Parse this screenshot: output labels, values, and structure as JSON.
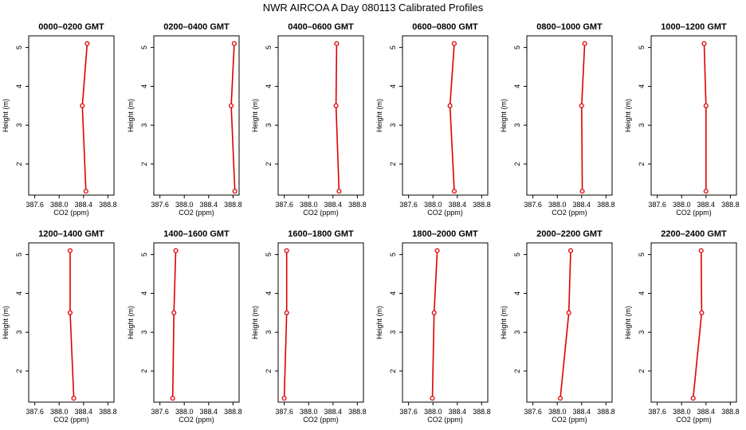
{
  "title": "NWR AIRCOA A  Day 080113  Calibrated Profiles",
  "colors": {
    "line": "#dd0000",
    "axis": "#000000",
    "background": "#ffffff"
  },
  "chart_data": [
    {
      "type": "line",
      "title": "0000–0200 GMT",
      "xlabel": "CO2 (ppm)",
      "ylabel": "Height (m)",
      "xlim": [
        387.5,
        388.9
      ],
      "ylim": [
        1.2,
        5.3
      ],
      "xticks": [
        387.6,
        388.0,
        388.4,
        388.8
      ],
      "xtick_labels": [
        "387.6",
        "388.0",
        "388.4",
        "388.8"
      ],
      "yticks": [
        2,
        3,
        4,
        5
      ],
      "ytick_labels": [
        "2",
        "3",
        "4",
        "5"
      ],
      "x": [
        388.46,
        388.38,
        388.44
      ],
      "y": [
        5.1,
        3.5,
        1.3
      ]
    },
    {
      "type": "line",
      "title": "0200–0400 GMT",
      "xlabel": "CO2 (ppm)",
      "ylabel": "Height (m)",
      "xlim": [
        387.5,
        388.9
      ],
      "ylim": [
        1.2,
        5.3
      ],
      "xticks": [
        387.6,
        388.0,
        388.4,
        388.8
      ],
      "xtick_labels": [
        "387.6",
        "388.0",
        "388.4",
        "388.8"
      ],
      "yticks": [
        2,
        3,
        4,
        5
      ],
      "ytick_labels": [
        "2",
        "3",
        "4",
        "5"
      ],
      "x": [
        388.82,
        388.77,
        388.83
      ],
      "y": [
        5.1,
        3.5,
        1.3
      ]
    },
    {
      "type": "line",
      "title": "0400–0600 GMT",
      "xlabel": "CO2 (ppm)",
      "ylabel": "Height (m)",
      "xlim": [
        387.5,
        388.9
      ],
      "ylim": [
        1.2,
        5.3
      ],
      "xticks": [
        387.6,
        388.0,
        388.4,
        388.8
      ],
      "xtick_labels": [
        "387.6",
        "388.0",
        "388.4",
        "388.8"
      ],
      "yticks": [
        2,
        3,
        4,
        5
      ],
      "ytick_labels": [
        "2",
        "3",
        "4",
        "5"
      ],
      "x": [
        388.46,
        388.45,
        388.5
      ],
      "y": [
        5.1,
        3.5,
        1.3
      ]
    },
    {
      "type": "line",
      "title": "0600–0800 GMT",
      "xlabel": "CO2 (ppm)",
      "ylabel": "Height (m)",
      "xlim": [
        387.5,
        388.9
      ],
      "ylim": [
        1.2,
        5.3
      ],
      "xticks": [
        387.6,
        388.0,
        388.4,
        388.8
      ],
      "xtick_labels": [
        "387.6",
        "388.0",
        "388.4",
        "388.8"
      ],
      "yticks": [
        2,
        3,
        4,
        5
      ],
      "ytick_labels": [
        "2",
        "3",
        "4",
        "5"
      ],
      "x": [
        388.35,
        388.28,
        388.35
      ],
      "y": [
        5.1,
        3.5,
        1.3
      ]
    },
    {
      "type": "line",
      "title": "0800–1000 GMT",
      "xlabel": "CO2 (ppm)",
      "ylabel": "Height (m)",
      "xlim": [
        387.5,
        388.9
      ],
      "ylim": [
        1.2,
        5.3
      ],
      "xticks": [
        387.6,
        388.0,
        388.4,
        388.8
      ],
      "xtick_labels": [
        "387.6",
        "388.0",
        "388.4",
        "388.8"
      ],
      "yticks": [
        2,
        3,
        4,
        5
      ],
      "ytick_labels": [
        "2",
        "3",
        "4",
        "5"
      ],
      "x": [
        388.45,
        388.4,
        388.41
      ],
      "y": [
        5.1,
        3.5,
        1.3
      ]
    },
    {
      "type": "line",
      "title": "1000–1200 GMT",
      "xlabel": "CO2 (ppm)",
      "ylabel": "Height (m)",
      "xlim": [
        387.5,
        388.9
      ],
      "ylim": [
        1.2,
        5.3
      ],
      "xticks": [
        387.6,
        388.0,
        388.4,
        388.8
      ],
      "xtick_labels": [
        "387.6",
        "388.0",
        "388.4",
        "388.8"
      ],
      "yticks": [
        2,
        3,
        4,
        5
      ],
      "ytick_labels": [
        "2",
        "3",
        "4",
        "5"
      ],
      "x": [
        388.37,
        388.4,
        388.4
      ],
      "y": [
        5.1,
        3.5,
        1.3
      ]
    },
    {
      "type": "line",
      "title": "1200–1400 GMT",
      "xlabel": "CO2 (ppm)",
      "ylabel": "Height (m)",
      "xlim": [
        387.5,
        388.9
      ],
      "ylim": [
        1.2,
        5.3
      ],
      "xticks": [
        387.6,
        388.0,
        388.4,
        388.8
      ],
      "xtick_labels": [
        "387.6",
        "388.0",
        "388.4",
        "388.8"
      ],
      "yticks": [
        2,
        3,
        4,
        5
      ],
      "ytick_labels": [
        "2",
        "3",
        "4",
        "5"
      ],
      "x": [
        388.18,
        388.18,
        388.24
      ],
      "y": [
        5.1,
        3.5,
        1.3
      ]
    },
    {
      "type": "line",
      "title": "1400–1600 GMT",
      "xlabel": "CO2 (ppm)",
      "ylabel": "Height (m)",
      "xlim": [
        387.5,
        388.9
      ],
      "ylim": [
        1.2,
        5.3
      ],
      "xticks": [
        387.6,
        388.0,
        388.4,
        388.8
      ],
      "xtick_labels": [
        "387.6",
        "388.0",
        "388.4",
        "388.8"
      ],
      "yticks": [
        2,
        3,
        4,
        5
      ],
      "ytick_labels": [
        "2",
        "3",
        "4",
        "5"
      ],
      "x": [
        387.86,
        387.83,
        387.81
      ],
      "y": [
        5.1,
        3.5,
        1.3
      ]
    },
    {
      "type": "line",
      "title": "1600–1800 GMT",
      "xlabel": "CO2 (ppm)",
      "ylabel": "Height (m)",
      "xlim": [
        387.5,
        388.9
      ],
      "ylim": [
        1.2,
        5.3
      ],
      "xticks": [
        387.6,
        388.0,
        388.4,
        388.8
      ],
      "xtick_labels": [
        "387.6",
        "388.0",
        "388.4",
        "388.8"
      ],
      "yticks": [
        2,
        3,
        4,
        5
      ],
      "ytick_labels": [
        "2",
        "3",
        "4",
        "5"
      ],
      "x": [
        387.64,
        387.64,
        387.6
      ],
      "y": [
        5.1,
        3.5,
        1.3
      ]
    },
    {
      "type": "line",
      "title": "1800–2000 GMT",
      "xlabel": "CO2 (ppm)",
      "ylabel": "Height (m)",
      "xlim": [
        387.5,
        388.9
      ],
      "ylim": [
        1.2,
        5.3
      ],
      "xticks": [
        387.6,
        388.0,
        388.4,
        388.8
      ],
      "xtick_labels": [
        "387.6",
        "388.0",
        "388.4",
        "388.8"
      ],
      "yticks": [
        2,
        3,
        4,
        5
      ],
      "ytick_labels": [
        "2",
        "3",
        "4",
        "5"
      ],
      "x": [
        388.07,
        388.02,
        387.99
      ],
      "y": [
        5.1,
        3.5,
        1.3
      ]
    },
    {
      "type": "line",
      "title": "2000–2200 GMT",
      "xlabel": "CO2 (ppm)",
      "ylabel": "Height (m)",
      "xlim": [
        387.5,
        388.9
      ],
      "ylim": [
        1.2,
        5.3
      ],
      "xticks": [
        387.6,
        388.0,
        388.4,
        388.8
      ],
      "xtick_labels": [
        "387.6",
        "388.0",
        "388.4",
        "388.8"
      ],
      "yticks": [
        2,
        3,
        4,
        5
      ],
      "ytick_labels": [
        "2",
        "3",
        "4",
        "5"
      ],
      "x": [
        388.22,
        388.19,
        388.05
      ],
      "y": [
        5.1,
        3.5,
        1.3
      ]
    },
    {
      "type": "line",
      "title": "2200–2400 GMT",
      "xlabel": "CO2 (ppm)",
      "ylabel": "Height (m)",
      "xlim": [
        387.5,
        388.9
      ],
      "ylim": [
        1.2,
        5.3
      ],
      "xticks": [
        387.6,
        388.0,
        388.4,
        388.8
      ],
      "xtick_labels": [
        "387.6",
        "388.0",
        "388.4",
        "388.8"
      ],
      "yticks": [
        2,
        3,
        4,
        5
      ],
      "ytick_labels": [
        "2",
        "3",
        "4",
        "5"
      ],
      "x": [
        388.32,
        388.33,
        388.19
      ],
      "y": [
        5.1,
        3.5,
        1.3
      ]
    }
  ]
}
